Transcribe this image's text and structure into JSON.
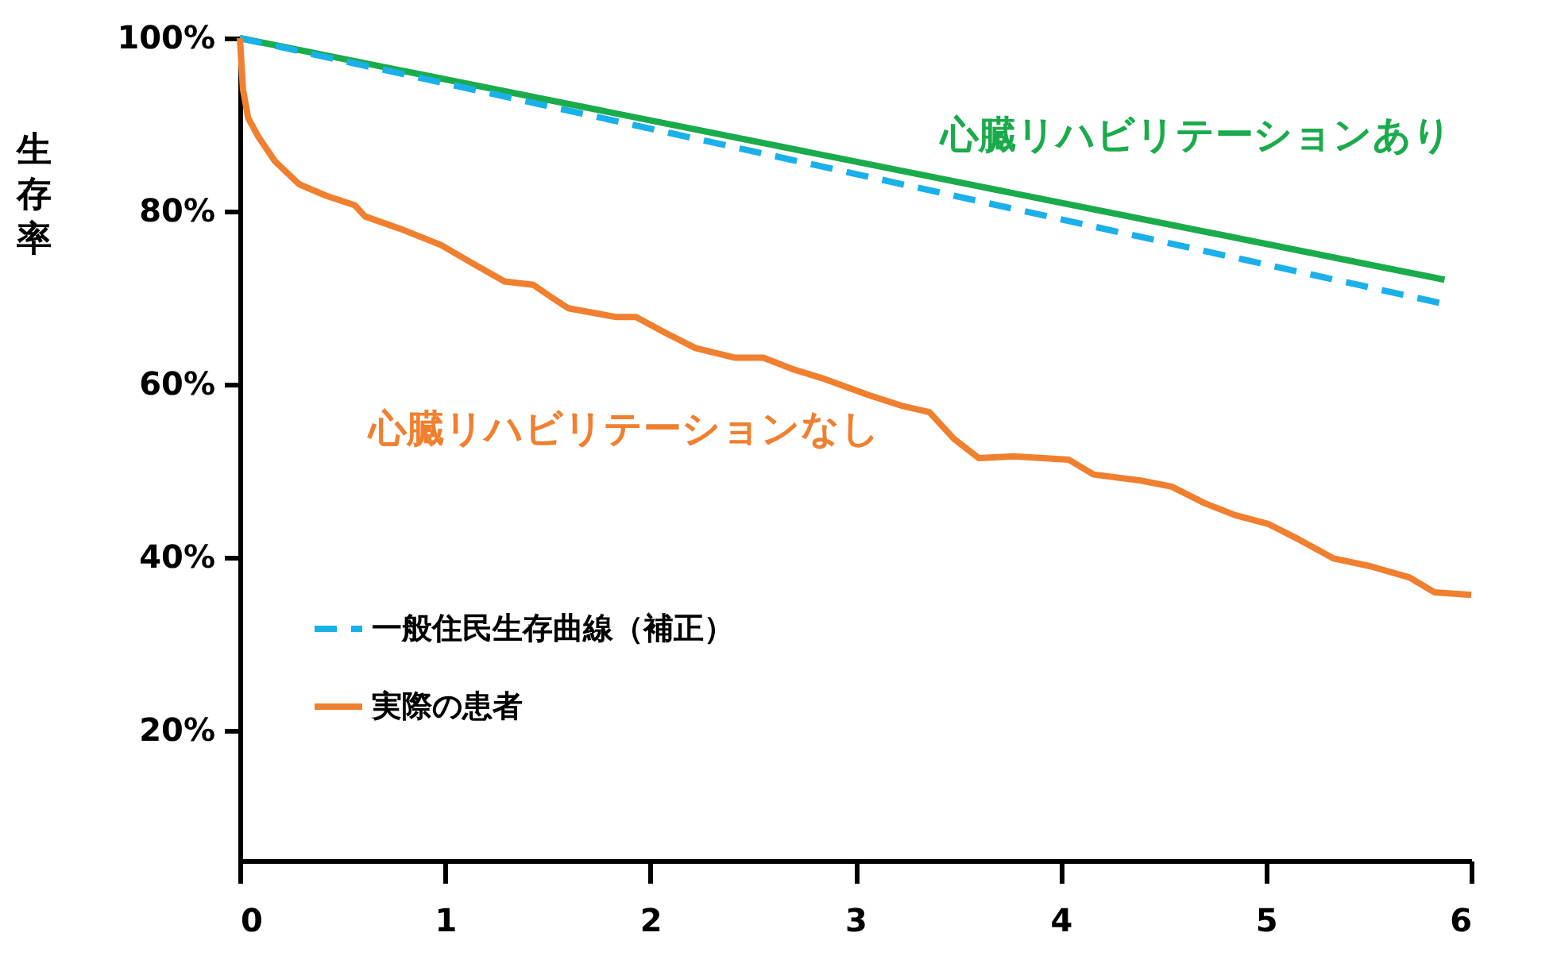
{
  "chart_data": {
    "type": "line",
    "ylabel": "生存率",
    "xlim": [
      0,
      6
    ],
    "xticks": [
      0,
      1,
      2,
      3,
      4,
      5,
      6
    ],
    "ylim": [
      5,
      100
    ],
    "yticks": [
      {
        "value": 20,
        "label": "20%"
      },
      {
        "value": 40,
        "label": "40%"
      },
      {
        "value": 60,
        "label": "60%"
      },
      {
        "value": 80,
        "label": "80%"
      },
      {
        "value": 100,
        "label": "100%"
      }
    ],
    "grid": false,
    "legend": "bottom left",
    "marker": "none",
    "annotations": [
      "心臓リハビリテーションあり",
      "心臓リハビリテーションなし"
    ],
    "series": [
      {
        "color": "#1aab4b",
        "line_style": "solid",
        "x": [
          0,
          5.87
        ],
        "values": [
          100,
          72.1
        ]
      },
      {
        "name": "一般住民生存曲線（補正）",
        "color": "#1ab0ea",
        "line_style": "dashed",
        "x": [
          0,
          5.87
        ],
        "values": [
          100,
          69.3
        ]
      },
      {
        "name": "実際の患者",
        "color": "#f0802f",
        "line_style": "solid",
        "x": [
          0,
          0.015,
          0.04,
          0.09,
          0.17,
          0.29,
          0.42,
          0.56,
          0.61,
          0.79,
          0.98,
          1.14,
          1.29,
          1.43,
          1.51,
          1.6,
          1.83,
          1.93,
          2.07,
          2.22,
          2.41,
          2.55,
          2.69,
          2.84,
          3.06,
          3.23,
          3.36,
          3.48,
          3.6,
          3.77,
          4.04,
          4.16,
          4.39,
          4.54,
          4.7,
          4.85,
          5.01,
          5.16,
          5.33,
          5.51,
          5.7,
          5.82,
          6.0
        ],
        "values": [
          100,
          94.1,
          90.8,
          88.6,
          85.8,
          83.1,
          81.8,
          80.7,
          79.4,
          77.9,
          76.1,
          73.9,
          71.9,
          71.5,
          70.2,
          68.8,
          67.8,
          67.8,
          66.0,
          64.2,
          63.1,
          63.1,
          61.8,
          60.7,
          58.8,
          57.5,
          56.8,
          53.7,
          51.5,
          51.7,
          51.3,
          49.6,
          48.9,
          48.2,
          46.3,
          44.9,
          43.9,
          42.1,
          39.9,
          39.0,
          37.7,
          36.0,
          35.7
        ]
      }
    ]
  }
}
